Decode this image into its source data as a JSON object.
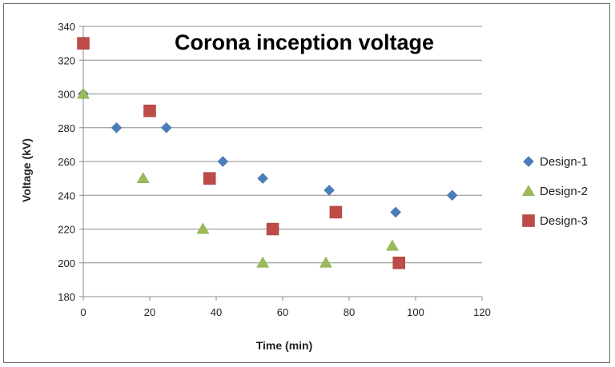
{
  "chart_data": {
    "type": "scatter",
    "title": "Corona inception voltage",
    "xlabel": "Time (min)",
    "ylabel": "Voltage (kV)",
    "xlim": [
      0,
      120
    ],
    "ylim": [
      180,
      340
    ],
    "xticks": [
      0,
      20,
      40,
      60,
      80,
      100,
      120
    ],
    "yticks": [
      180,
      200,
      220,
      240,
      260,
      280,
      300,
      320,
      340
    ],
    "grid": "horizontal",
    "legend_position": "right",
    "series": [
      {
        "name": "Design-1",
        "marker": "diamond",
        "color": "#4a7ebb",
        "points": [
          [
            0,
            300
          ],
          [
            10,
            280
          ],
          [
            25,
            280
          ],
          [
            42,
            260
          ],
          [
            54,
            250
          ],
          [
            74,
            243
          ],
          [
            94,
            230
          ],
          [
            111,
            240
          ]
        ]
      },
      {
        "name": "Design-2",
        "marker": "triangle",
        "color": "#9bbb59",
        "points": [
          [
            0,
            300
          ],
          [
            18,
            250
          ],
          [
            36,
            220
          ],
          [
            54,
            200
          ],
          [
            73,
            200
          ],
          [
            93,
            210
          ]
        ]
      },
      {
        "name": "Design-3",
        "marker": "square",
        "color": "#be4b48",
        "points": [
          [
            0,
            330
          ],
          [
            20,
            290
          ],
          [
            38,
            250
          ],
          [
            57,
            220
          ],
          [
            76,
            230
          ],
          [
            95,
            200
          ]
        ]
      }
    ]
  }
}
